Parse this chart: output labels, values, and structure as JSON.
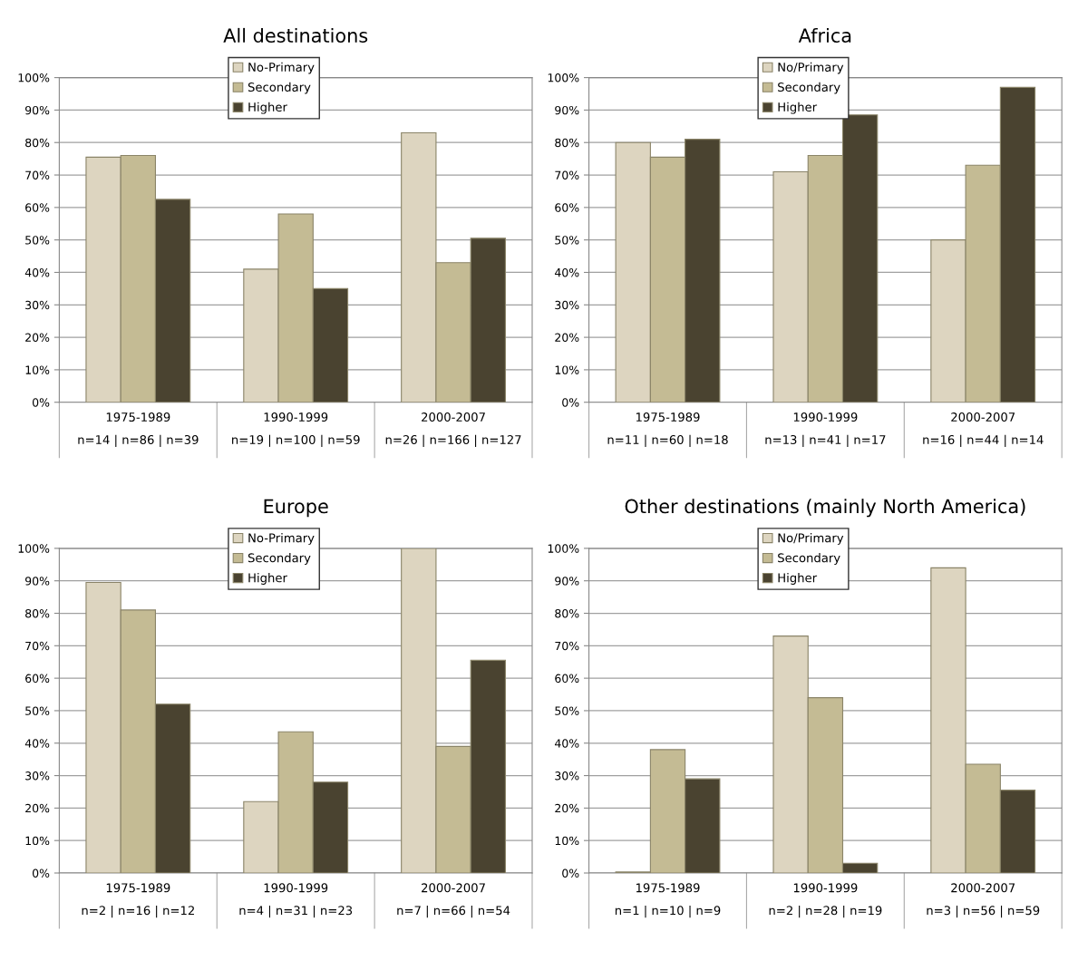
{
  "chart_data": [
    {
      "type": "bar",
      "title": "All destinations",
      "categories": [
        "1975-1989\nn=14 | n=86 | n=39",
        "1990-1999\nn=19 | n=100 | n=59",
        "2000-2007\nn=26 | n=166 | n=127"
      ],
      "series": [
        {
          "name": "No-Primary",
          "color": "#ddd5c0",
          "values": [
            75.5,
            41,
            83
          ]
        },
        {
          "name": "Secondary",
          "color": "#c4bb94",
          "values": [
            76,
            58,
            43
          ]
        },
        {
          "name": "Higher",
          "color": "#4a4330",
          "values": [
            62.5,
            35,
            50.5
          ]
        }
      ],
      "ylim": [
        0,
        100
      ],
      "yticks": [
        {
          "value": 0,
          "label": "0%"
        },
        {
          "value": 10,
          "label": "10%"
        },
        {
          "value": 20,
          "label": "20%"
        },
        {
          "value": 30,
          "label": "30%"
        },
        {
          "value": 40,
          "label": "40%"
        },
        {
          "value": 50,
          "label": "50%"
        },
        {
          "value": 60,
          "label": "60%"
        },
        {
          "value": 70,
          "label": "70%"
        },
        {
          "value": 80,
          "label": "80%"
        },
        {
          "value": 90,
          "label": "90%"
        },
        {
          "value": 100,
          "label": "100%"
        }
      ],
      "grid": "y",
      "legend": "top"
    },
    {
      "type": "bar",
      "title": "Africa",
      "categories": [
        "1975-1989\nn=11 | n=60 | n=18",
        "1990-1999\nn=13 | n=41 | n=17",
        "2000-2007\nn=16 | n=44 | n=14"
      ],
      "series": [
        {
          "name": "No/Primary",
          "color": "#ddd5c0",
          "values": [
            80,
            71,
            50
          ]
        },
        {
          "name": "Secondary",
          "color": "#c4bb94",
          "values": [
            75.5,
            76,
            73
          ]
        },
        {
          "name": "Higher",
          "color": "#4a4330",
          "values": [
            81,
            88.5,
            97
          ]
        }
      ],
      "ylim": [
        0,
        100
      ],
      "yticks": [
        {
          "value": 0,
          "label": "0%"
        },
        {
          "value": 10,
          "label": "10%"
        },
        {
          "value": 20,
          "label": "20%"
        },
        {
          "value": 30,
          "label": "30%"
        },
        {
          "value": 40,
          "label": "40%"
        },
        {
          "value": 50,
          "label": "50%"
        },
        {
          "value": 60,
          "label": "60%"
        },
        {
          "value": 70,
          "label": "70%"
        },
        {
          "value": 80,
          "label": "80%"
        },
        {
          "value": 90,
          "label": "90%"
        },
        {
          "value": 100,
          "label": "100%"
        }
      ],
      "grid": "y",
      "legend": "top"
    },
    {
      "type": "bar",
      "title": "Europe",
      "categories": [
        "1975-1989\nn=2 | n=16 | n=12",
        "1990-1999\nn=4 | n=31 | n=23",
        "2000-2007\nn=7 | n=66 | n=54"
      ],
      "series": [
        {
          "name": "No-Primary",
          "color": "#ddd5c0",
          "values": [
            89.5,
            22,
            100
          ]
        },
        {
          "name": "Secondary",
          "color": "#c4bb94",
          "values": [
            81,
            43.5,
            39
          ]
        },
        {
          "name": "Higher",
          "color": "#4a4330",
          "values": [
            52,
            28,
            65.5
          ]
        }
      ],
      "ylim": [
        0,
        100
      ],
      "yticks": [
        {
          "value": 0,
          "label": "0%"
        },
        {
          "value": 10,
          "label": "10%"
        },
        {
          "value": 20,
          "label": "20%"
        },
        {
          "value": 30,
          "label": "30%"
        },
        {
          "value": 40,
          "label": "40%"
        },
        {
          "value": 50,
          "label": "50%"
        },
        {
          "value": 60,
          "label": "60%"
        },
        {
          "value": 70,
          "label": "70%"
        },
        {
          "value": 80,
          "label": "80%"
        },
        {
          "value": 90,
          "label": "90%"
        },
        {
          "value": 100,
          "label": "100%"
        }
      ],
      "grid": "y",
      "legend": "top"
    },
    {
      "type": "bar",
      "title": "Other destinations (mainly North America)",
      "categories": [
        "1975-1989\nn=1 | n=10 | n=9",
        "1990-1999\nn=2 | n=28 | n=19",
        "2000-2007\nn=3 | n=56 | n=59"
      ],
      "series": [
        {
          "name": "No/Primary",
          "color": "#ddd5c0",
          "values": [
            0.3,
            73,
            94
          ]
        },
        {
          "name": "Secondary",
          "color": "#c4bb94",
          "values": [
            38,
            54,
            33.5
          ]
        },
        {
          "name": "Higher",
          "color": "#4a4330",
          "values": [
            29,
            3,
            25.5
          ]
        }
      ],
      "ylim": [
        0,
        100
      ],
      "yticks": [
        {
          "value": 0,
          "label": "0%"
        },
        {
          "value": 10,
          "label": "10%"
        },
        {
          "value": 20,
          "label": "20%"
        },
        {
          "value": 30,
          "label": "30%"
        },
        {
          "value": 40,
          "label": "40%"
        },
        {
          "value": 50,
          "label": "50%"
        },
        {
          "value": 60,
          "label": "60%"
        },
        {
          "value": 70,
          "label": "70%"
        },
        {
          "value": 80,
          "label": "80%"
        },
        {
          "value": 90,
          "label": "90%"
        },
        {
          "value": 100,
          "label": "100%"
        }
      ],
      "grid": "y",
      "legend": "top"
    }
  ]
}
